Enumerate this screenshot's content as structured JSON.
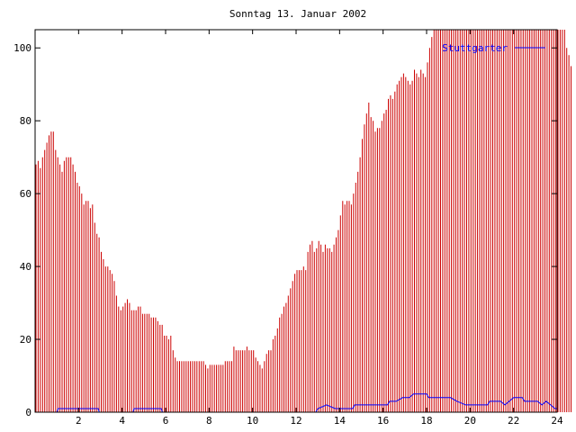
{
  "chart_data": {
    "type": "bar",
    "title": "Sonntag 13. Januar 2002",
    "xlabel": "",
    "ylabel": "",
    "xlim": [
      0,
      24
    ],
    "ylim": [
      0,
      105
    ],
    "xticks": [
      2,
      4,
      6,
      8,
      10,
      12,
      14,
      16,
      18,
      20,
      22,
      24
    ],
    "yticks": [
      0,
      20,
      40,
      60,
      80,
      100
    ],
    "legend_position": "top-right",
    "grid": false,
    "series": [
      {
        "name": "",
        "kind": "impulses",
        "color": "#cc0000",
        "interval_hours": 0.1,
        "values": [
          68,
          69,
          67,
          70,
          72,
          74,
          76,
          77,
          77,
          72,
          70,
          68,
          66,
          69,
          70,
          70,
          70,
          68,
          66,
          63,
          62,
          60,
          57,
          58,
          58,
          56,
          57,
          52,
          49,
          48,
          44,
          42,
          40,
          40,
          39,
          38,
          36,
          32,
          29,
          28,
          29,
          30,
          31,
          30,
          28,
          28,
          28,
          29,
          29,
          27,
          27,
          27,
          27,
          26,
          26,
          26,
          25,
          24,
          24,
          21,
          21,
          20,
          21,
          17,
          15,
          14,
          14,
          14,
          14,
          14,
          14,
          14,
          14,
          14,
          14,
          14,
          14,
          14,
          13,
          12,
          13,
          13,
          13,
          13,
          13,
          13,
          13,
          14,
          14,
          14,
          14,
          18,
          17,
          17,
          17,
          17,
          17,
          18,
          17,
          17,
          17,
          15,
          14,
          13,
          12,
          14,
          16,
          17,
          17,
          20,
          21,
          23,
          26,
          27,
          29,
          30,
          32,
          34,
          36,
          38,
          39,
          39,
          39,
          40,
          39,
          44,
          46,
          47,
          44,
          45,
          47,
          46,
          44,
          46,
          45,
          45,
          44,
          46,
          48,
          50,
          54,
          58,
          57,
          58,
          58,
          57,
          60,
          63,
          66,
          70,
          75,
          79,
          82,
          85,
          81,
          80,
          77,
          78,
          78,
          80,
          82,
          83,
          86,
          87,
          86,
          88,
          90,
          91,
          92,
          93,
          92,
          91,
          90,
          91,
          94,
          93,
          92,
          94,
          93,
          92,
          96,
          100,
          103,
          105,
          105,
          105,
          105,
          105,
          105,
          105,
          105,
          105,
          105,
          105,
          105,
          105,
          105,
          105,
          105,
          105,
          105,
          105,
          105,
          105,
          105,
          105,
          105,
          105,
          105,
          105,
          105,
          105,
          105,
          105,
          105,
          105,
          105,
          105,
          105,
          105,
          105,
          105,
          105,
          105,
          105,
          105,
          105,
          105,
          105,
          105,
          105,
          105,
          105,
          105,
          105,
          105,
          105,
          105,
          105,
          105,
          105,
          105,
          105,
          105,
          100,
          98,
          95
        ]
      },
      {
        "name": "Stuttgarter",
        "kind": "line",
        "color": "#0000ff",
        "points": [
          [
            0,
            0
          ],
          [
            1,
            0
          ],
          [
            1.05,
            1
          ],
          [
            2.9,
            1
          ],
          [
            2.95,
            0
          ],
          [
            4.5,
            0
          ],
          [
            4.55,
            1
          ],
          [
            5.8,
            1
          ],
          [
            5.85,
            0
          ],
          [
            12.9,
            0
          ],
          [
            13,
            1
          ],
          [
            13.4,
            2
          ],
          [
            13.8,
            1
          ],
          [
            14.6,
            1
          ],
          [
            14.7,
            2
          ],
          [
            16.2,
            2
          ],
          [
            16.3,
            3
          ],
          [
            16.6,
            3
          ],
          [
            16.9,
            4
          ],
          [
            17.2,
            4
          ],
          [
            17.4,
            5
          ],
          [
            18,
            5
          ],
          [
            18.1,
            4
          ],
          [
            19.1,
            4
          ],
          [
            19.4,
            3
          ],
          [
            19.8,
            2
          ],
          [
            20.2,
            2
          ],
          [
            20.8,
            2
          ],
          [
            20.9,
            3
          ],
          [
            21.4,
            3
          ],
          [
            21.6,
            2
          ],
          [
            21.8,
            3
          ],
          [
            22,
            4
          ],
          [
            22.4,
            4
          ],
          [
            22.5,
            3
          ],
          [
            23.1,
            3
          ],
          [
            23.3,
            2
          ],
          [
            23.5,
            3
          ],
          [
            23.7,
            2
          ],
          [
            23.9,
            1
          ],
          [
            24,
            1
          ]
        ]
      }
    ]
  }
}
